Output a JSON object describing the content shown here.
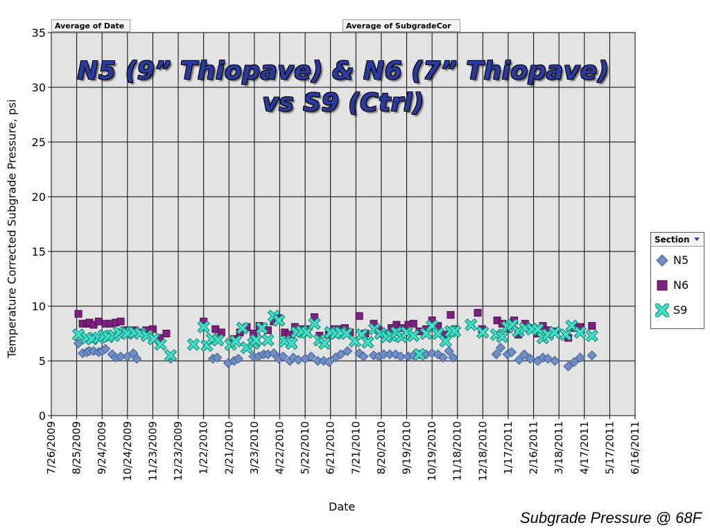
{
  "pivot": {
    "date_field": "Average of Date",
    "value_field": "Average of SubgradeCor"
  },
  "legend": {
    "header": "Section",
    "dropdown_icon": "dropdown-arrow-icon"
  },
  "footer": "Subgrade Pressure @ 68F",
  "chart_data": {
    "type": "scatter",
    "title_line1": "N5 (9” Thiopave) & N6 (7” Thiopave)",
    "title_line2": "vs S9 (Ctrl)",
    "xlabel": "Date",
    "ylabel": "Temperature Corrected Subgrade Pressure, psi",
    "ylim": [
      0,
      35
    ],
    "yticks": [
      0,
      5,
      10,
      15,
      20,
      25,
      30,
      35
    ],
    "xlim": [
      "2009-07-26",
      "2011-06-16"
    ],
    "xticks": [
      "7/26/2009",
      "8/25/2009",
      "9/24/2009",
      "10/24/2009",
      "11/23/2009",
      "12/23/2009",
      "1/22/2010",
      "2/21/2010",
      "3/23/2010",
      "4/22/2010",
      "5/22/2010",
      "6/21/2010",
      "7/21/2010",
      "8/20/2010",
      "9/19/2010",
      "10/19/2010",
      "11/18/2010",
      "12/18/2010",
      "1/17/2011",
      "2/16/2011",
      "3/18/2011",
      "4/17/2011",
      "5/17/2011",
      "6/16/2011"
    ],
    "grid": true,
    "legend_position": "right",
    "series": [
      {
        "name": "N5",
        "marker": "diamond",
        "color": "#6e8ec4",
        "points": [
          [
            "2009-08-27",
            6.6
          ],
          [
            "2009-09-01",
            5.7
          ],
          [
            "2009-09-06",
            5.8
          ],
          [
            "2009-09-09",
            5.9
          ],
          [
            "2009-09-14",
            5.9
          ],
          [
            "2009-09-20",
            5.8
          ],
          [
            "2009-09-24",
            5.9
          ],
          [
            "2009-09-28",
            6.1
          ],
          [
            "2009-10-06",
            5.6
          ],
          [
            "2009-10-10",
            5.3
          ],
          [
            "2009-10-16",
            5.4
          ],
          [
            "2009-10-24",
            5.4
          ],
          [
            "2009-10-31",
            5.7
          ],
          [
            "2009-11-04",
            5.2
          ],
          [
            "2009-12-14",
            5.2
          ],
          [
            "2010-02-02",
            5.2
          ],
          [
            "2010-02-07",
            5.3
          ],
          [
            "2010-02-20",
            4.8
          ],
          [
            "2010-02-27",
            5.0
          ],
          [
            "2010-03-04",
            5.2
          ],
          [
            "2010-03-22",
            5.4
          ],
          [
            "2010-03-28",
            5.4
          ],
          [
            "2010-04-03",
            5.6
          ],
          [
            "2010-04-08",
            5.6
          ],
          [
            "2010-04-15",
            5.7
          ],
          [
            "2010-04-21",
            5.2
          ],
          [
            "2010-04-26",
            5.4
          ],
          [
            "2010-05-04",
            5.0
          ],
          [
            "2010-05-08",
            5.3
          ],
          [
            "2010-05-14",
            5.1
          ],
          [
            "2010-05-22",
            5.2
          ],
          [
            "2010-05-29",
            5.4
          ],
          [
            "2010-06-06",
            5.0
          ],
          [
            "2010-06-13",
            5.0
          ],
          [
            "2010-06-19",
            4.9
          ],
          [
            "2010-06-27",
            5.3
          ],
          [
            "2010-07-03",
            5.6
          ],
          [
            "2010-07-11",
            5.9
          ],
          [
            "2010-07-25",
            5.7
          ],
          [
            "2010-07-30",
            5.4
          ],
          [
            "2010-08-11",
            5.5
          ],
          [
            "2010-08-17",
            5.4
          ],
          [
            "2010-08-23",
            5.6
          ],
          [
            "2010-08-30",
            5.6
          ],
          [
            "2010-09-06",
            5.6
          ],
          [
            "2010-09-12",
            5.4
          ],
          [
            "2010-09-21",
            5.4
          ],
          [
            "2010-09-27",
            5.5
          ],
          [
            "2010-10-04",
            5.6
          ],
          [
            "2010-10-12",
            5.6
          ],
          [
            "2010-10-19",
            5.7
          ],
          [
            "2010-10-26",
            5.6
          ],
          [
            "2010-11-01",
            5.3
          ],
          [
            "2010-11-08",
            5.9
          ],
          [
            "2010-11-13",
            5.3
          ],
          [
            "2011-01-03",
            5.6
          ],
          [
            "2011-01-08",
            6.2
          ],
          [
            "2011-01-16",
            5.6
          ],
          [
            "2011-01-21",
            5.8
          ],
          [
            "2011-01-30",
            5.1
          ],
          [
            "2011-02-05",
            5.6
          ],
          [
            "2011-02-12",
            5.2
          ],
          [
            "2011-02-21",
            5.0
          ],
          [
            "2011-02-27",
            5.3
          ],
          [
            "2011-03-05",
            5.2
          ],
          [
            "2011-03-13",
            5.0
          ],
          [
            "2011-03-29",
            4.5
          ],
          [
            "2011-04-05",
            4.9
          ],
          [
            "2011-04-12",
            5.3
          ],
          [
            "2011-04-26",
            5.5
          ]
        ]
      },
      {
        "name": "N6",
        "marker": "square",
        "color": "#7f1f7f",
        "points": [
          [
            "2009-08-27",
            9.3
          ],
          [
            "2009-09-01",
            8.4
          ],
          [
            "2009-09-06",
            8.4
          ],
          [
            "2009-09-09",
            8.5
          ],
          [
            "2009-09-14",
            8.3
          ],
          [
            "2009-09-20",
            8.6
          ],
          [
            "2009-09-28",
            8.4
          ],
          [
            "2009-10-04",
            8.4
          ],
          [
            "2009-10-10",
            8.5
          ],
          [
            "2009-10-16",
            8.6
          ],
          [
            "2009-10-24",
            7.8
          ],
          [
            "2009-11-01",
            7.8
          ],
          [
            "2009-11-08",
            7.6
          ],
          [
            "2009-11-15",
            7.8
          ],
          [
            "2009-11-23",
            7.9
          ],
          [
            "2009-12-01",
            7.1
          ],
          [
            "2009-12-09",
            7.5
          ],
          [
            "2010-01-22",
            8.6
          ],
          [
            "2010-02-05",
            7.9
          ],
          [
            "2010-02-12",
            7.6
          ],
          [
            "2010-02-27",
            7.0
          ],
          [
            "2010-03-06",
            7.6
          ],
          [
            "2010-03-14",
            8.1
          ],
          [
            "2010-03-22",
            7.5
          ],
          [
            "2010-03-29",
            8.2
          ],
          [
            "2010-04-08",
            7.8
          ],
          [
            "2010-04-15",
            8.6
          ],
          [
            "2010-04-21",
            8.9
          ],
          [
            "2010-04-28",
            7.6
          ],
          [
            "2010-05-03",
            7.4
          ],
          [
            "2010-05-10",
            8.1
          ],
          [
            "2010-05-18",
            7.9
          ],
          [
            "2010-05-24",
            7.9
          ],
          [
            "2010-06-02",
            9.0
          ],
          [
            "2010-06-08",
            7.3
          ],
          [
            "2010-06-19",
            7.4
          ],
          [
            "2010-06-25",
            7.9
          ],
          [
            "2010-07-01",
            7.9
          ],
          [
            "2010-07-08",
            8.0
          ],
          [
            "2010-07-14",
            7.6
          ],
          [
            "2010-07-25",
            9.1
          ],
          [
            "2010-08-01",
            7.5
          ],
          [
            "2010-08-11",
            8.4
          ],
          [
            "2010-08-17",
            7.8
          ],
          [
            "2010-08-23",
            7.5
          ],
          [
            "2010-09-01",
            8.0
          ],
          [
            "2010-09-07",
            8.3
          ],
          [
            "2010-09-13",
            8.0
          ],
          [
            "2010-09-21",
            8.3
          ],
          [
            "2010-09-27",
            8.4
          ],
          [
            "2010-10-04",
            7.7
          ],
          [
            "2010-10-12",
            7.9
          ],
          [
            "2010-10-19",
            8.7
          ],
          [
            "2010-10-26",
            8.2
          ],
          [
            "2010-11-04",
            7.4
          ],
          [
            "2010-11-10",
            9.2
          ],
          [
            "2010-11-15",
            7.9
          ],
          [
            "2010-12-12",
            9.4
          ],
          [
            "2010-12-17",
            7.9
          ],
          [
            "2011-01-04",
            8.7
          ],
          [
            "2011-01-10",
            8.4
          ],
          [
            "2011-01-17",
            7.9
          ],
          [
            "2011-01-24",
            8.7
          ],
          [
            "2011-01-29",
            7.4
          ],
          [
            "2011-02-06",
            8.4
          ],
          [
            "2011-02-12",
            8.0
          ],
          [
            "2011-02-20",
            7.5
          ],
          [
            "2011-02-27",
            8.2
          ],
          [
            "2011-03-05",
            7.8
          ],
          [
            "2011-03-13",
            7.7
          ],
          [
            "2011-03-29",
            7.1
          ],
          [
            "2011-04-05",
            8.0
          ],
          [
            "2011-04-12",
            8.1
          ],
          [
            "2011-04-26",
            8.2
          ]
        ]
      },
      {
        "name": "S9",
        "marker": "x",
        "color": "#2fcfb8",
        "points": [
          [
            "2009-08-27",
            7.4
          ],
          [
            "2009-09-06",
            7.1
          ],
          [
            "2009-09-12",
            7.0
          ],
          [
            "2009-09-20",
            7.1
          ],
          [
            "2009-09-26",
            7.3
          ],
          [
            "2009-10-01",
            7.2
          ],
          [
            "2009-10-08",
            7.3
          ],
          [
            "2009-10-14",
            7.6
          ],
          [
            "2009-10-21",
            7.6
          ],
          [
            "2009-10-24",
            7.5
          ],
          [
            "2009-11-01",
            7.6
          ],
          [
            "2009-11-08",
            7.5
          ],
          [
            "2009-11-16",
            7.3
          ],
          [
            "2009-11-24",
            7.0
          ],
          [
            "2009-12-02",
            6.5
          ],
          [
            "2009-12-14",
            5.5
          ],
          [
            "2010-01-10",
            6.5
          ],
          [
            "2010-01-22",
            8.1
          ],
          [
            "2010-01-26",
            6.4
          ],
          [
            "2010-02-01",
            7.0
          ],
          [
            "2010-02-08",
            6.9
          ],
          [
            "2010-02-23",
            6.5
          ],
          [
            "2010-03-01",
            6.8
          ],
          [
            "2010-03-09",
            8.0
          ],
          [
            "2010-03-14",
            6.2
          ],
          [
            "2010-03-22",
            6.6
          ],
          [
            "2010-03-25",
            6.9
          ],
          [
            "2010-04-01",
            8.0
          ],
          [
            "2010-04-08",
            6.9
          ],
          [
            "2010-04-15",
            9.1
          ],
          [
            "2010-04-21",
            8.7
          ],
          [
            "2010-04-28",
            6.8
          ],
          [
            "2010-05-06",
            6.6
          ],
          [
            "2010-05-12",
            7.6
          ],
          [
            "2010-05-18",
            7.7
          ],
          [
            "2010-05-24",
            7.6
          ],
          [
            "2010-06-02",
            8.4
          ],
          [
            "2010-06-08",
            6.9
          ],
          [
            "2010-06-14",
            6.6
          ],
          [
            "2010-06-21",
            7.6
          ],
          [
            "2010-06-27",
            7.5
          ],
          [
            "2010-07-03",
            7.6
          ],
          [
            "2010-07-10",
            7.5
          ],
          [
            "2010-07-20",
            6.8
          ],
          [
            "2010-07-28",
            7.4
          ],
          [
            "2010-08-04",
            6.7
          ],
          [
            "2010-08-12",
            7.9
          ],
          [
            "2010-08-19",
            7.5
          ],
          [
            "2010-08-26",
            7.2
          ],
          [
            "2010-09-01",
            7.3
          ],
          [
            "2010-09-07",
            7.6
          ],
          [
            "2010-09-13",
            7.2
          ],
          [
            "2010-09-19",
            7.6
          ],
          [
            "2010-09-27",
            7.3
          ],
          [
            "2010-10-04",
            5.6
          ],
          [
            "2010-10-12",
            7.5
          ],
          [
            "2010-10-19",
            8.2
          ],
          [
            "2010-10-26",
            7.5
          ],
          [
            "2010-11-04",
            6.8
          ],
          [
            "2010-11-10",
            7.7
          ],
          [
            "2010-11-15",
            7.7
          ],
          [
            "2010-12-04",
            8.3
          ],
          [
            "2010-12-18",
            7.6
          ],
          [
            "2011-01-03",
            7.4
          ],
          [
            "2011-01-10",
            7.2
          ],
          [
            "2011-01-16",
            8.1
          ],
          [
            "2011-01-22",
            8.3
          ],
          [
            "2011-01-29",
            7.7
          ],
          [
            "2011-02-06",
            8.0
          ],
          [
            "2011-02-14",
            7.9
          ],
          [
            "2011-02-21",
            7.9
          ],
          [
            "2011-02-27",
            7.1
          ],
          [
            "2011-03-05",
            7.4
          ],
          [
            "2011-03-13",
            7.6
          ],
          [
            "2011-03-26",
            7.4
          ],
          [
            "2011-04-02",
            8.2
          ],
          [
            "2011-04-12",
            7.6
          ],
          [
            "2011-04-26",
            7.3
          ]
        ]
      }
    ]
  }
}
